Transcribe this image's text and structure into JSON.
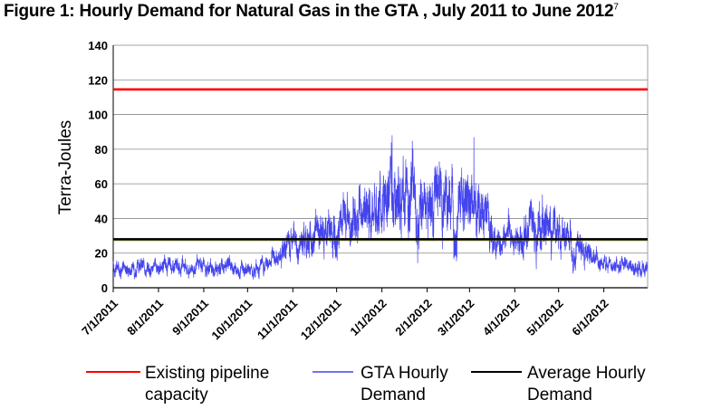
{
  "figure": {
    "title": "Figure 1: Hourly Demand for Natural Gas in the GTA , July 2011 to June 2012",
    "footnote_mark": "7"
  },
  "chart_data": {
    "type": "line",
    "title": "Figure 1: Hourly Demand for Natural Gas in the GTA , July 2011 to June 2012",
    "ylabel": "Terra-Joules",
    "xlabel": "",
    "ylim": [
      0,
      140
    ],
    "yticks": [
      0,
      20,
      40,
      60,
      80,
      100,
      120,
      140
    ],
    "xlim": [
      "2011-07-01",
      "2012-07-01"
    ],
    "x_tick_labels": [
      "7/1/2011",
      "8/1/2011",
      "9/1/2011",
      "10/1/2011",
      "11/1/2011",
      "12/1/2011",
      "1/1/2012",
      "2/1/2012",
      "3/1/2012",
      "4/1/2012",
      "5/1/2012",
      "6/1/2012"
    ],
    "grid": "horizontal",
    "legend_position": "bottom",
    "series": [
      {
        "name": "Existing pipeline capacity",
        "legend_lines": [
          "Existing pipeline",
          "capacity"
        ],
        "color": "#ff0000",
        "x": [
          "2011-07-01",
          "2012-07-01"
        ],
        "values": [
          114.5,
          114.5
        ]
      },
      {
        "name": "GTA Hourly Demand",
        "legend_lines": [
          "GTA Hourly",
          "Demand"
        ],
        "color": "#4444ee",
        "note": "hourly; mid-levels sampled monthly",
        "x": [
          "2011-07-01",
          "2011-08-01",
          "2011-09-01",
          "2011-10-01",
          "2011-10-15",
          "2011-11-01",
          "2011-11-15",
          "2011-12-01",
          "2011-12-15",
          "2012-01-01",
          "2012-01-15",
          "2012-02-01",
          "2012-02-15",
          "2012-03-01",
          "2012-03-10",
          "2012-03-20",
          "2012-04-01",
          "2012-04-15",
          "2012-05-01",
          "2012-05-15",
          "2012-06-01",
          "2012-06-15",
          "2012-07-01"
        ],
        "values": [
          12,
          12,
          12,
          11,
          14,
          25,
          30,
          35,
          42,
          50,
          55,
          52,
          50,
          50,
          48,
          25,
          28,
          40,
          30,
          22,
          14,
          12,
          12
        ],
        "peaks": [
          {
            "x": "2012-01-08",
            "value": 88
          },
          {
            "x": "2012-03-04",
            "value": 87
          }
        ]
      },
      {
        "name": "Average Hourly Demand",
        "legend_lines": [
          "Average Hourly",
          "Demand"
        ],
        "color": "#000000",
        "x": [
          "2011-07-01",
          "2012-07-01"
        ],
        "values": [
          28,
          28
        ]
      }
    ]
  }
}
